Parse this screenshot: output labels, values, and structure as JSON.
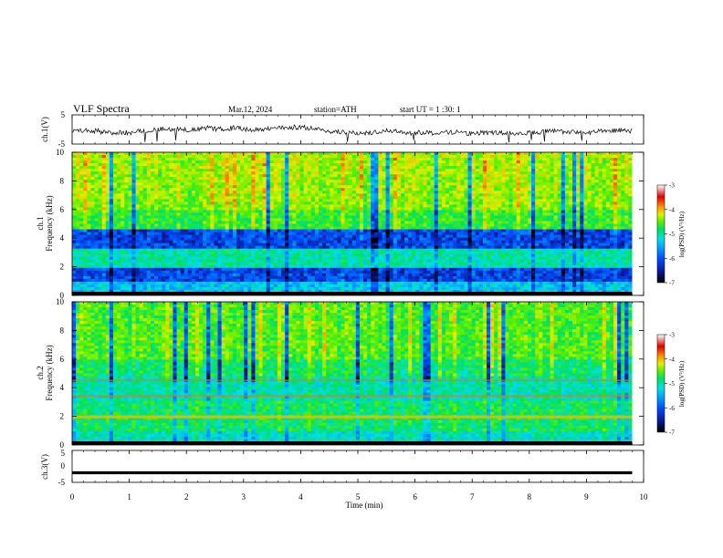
{
  "header": {
    "title": "VLF  Spectra",
    "date": "Mar.12, 2024",
    "station": "station=ATH",
    "start": "start  UT  =   1  :30: 1"
  },
  "chart_data": {
    "type": "heatmap",
    "x": {
      "label": "Time  (min)",
      "range": [
        0,
        10
      ],
      "ticks": [
        "0",
        "1",
        "2",
        "3",
        "4",
        "5",
        "6",
        "7",
        "8",
        "9",
        "10"
      ],
      "data_end": 9.8
    },
    "panels": [
      {
        "name": "ch1_waveform",
        "type": "line",
        "ylabel": "ch.1(V)",
        "ylim": [
          -5,
          5
        ],
        "yticks": [
          "5",
          "-5"
        ]
      },
      {
        "name": "ch1_spectrogram",
        "type": "heatmap",
        "ylabel_top": "ch.1",
        "ylabel": "Frequency (kHz)",
        "ylim": [
          0,
          10
        ],
        "yticks": [
          "0",
          "2",
          "4",
          "6",
          "8",
          "10"
        ],
        "dark_bands_khz": [
          [
            0.9,
            2.0
          ],
          [
            3.2,
            4.6
          ]
        ],
        "colorbar": {
          "label": "log(PSD) (V²/Hz)",
          "range": [
            -7,
            -3
          ],
          "ticks": [
            "-3",
            "-4",
            "-5",
            "-6",
            "-7"
          ]
        }
      },
      {
        "name": "ch2_spectrogram",
        "type": "heatmap",
        "ylabel_top": "ch.2",
        "ylabel": "Frequency (kHz)",
        "ylim": [
          0,
          10
        ],
        "yticks": [
          "0",
          "2",
          "4",
          "6",
          "8",
          "10"
        ],
        "warm_lines_khz": [
          1.9,
          2.0,
          3.4,
          4.5
        ],
        "colorbar": {
          "label": "log(PSD) (V²/Hz)",
          "range": [
            -7,
            -3
          ],
          "ticks": [
            "-3",
            "-4",
            "-5",
            "-6",
            "-7"
          ]
        }
      },
      {
        "name": "ch3_waveform",
        "type": "line",
        "ylabel": "ch.3(V)",
        "ylim": [
          -5,
          5
        ],
        "yticks": [
          "5",
          "0",
          "-5"
        ],
        "level": -2
      }
    ],
    "colormap": [
      "#000000",
      "#0a1a9a",
      "#0050ff",
      "#00a0ff",
      "#00e0e0",
      "#00e060",
      "#60f000",
      "#e0f000",
      "#ff9000",
      "#e00000",
      "#ffffff"
    ]
  }
}
